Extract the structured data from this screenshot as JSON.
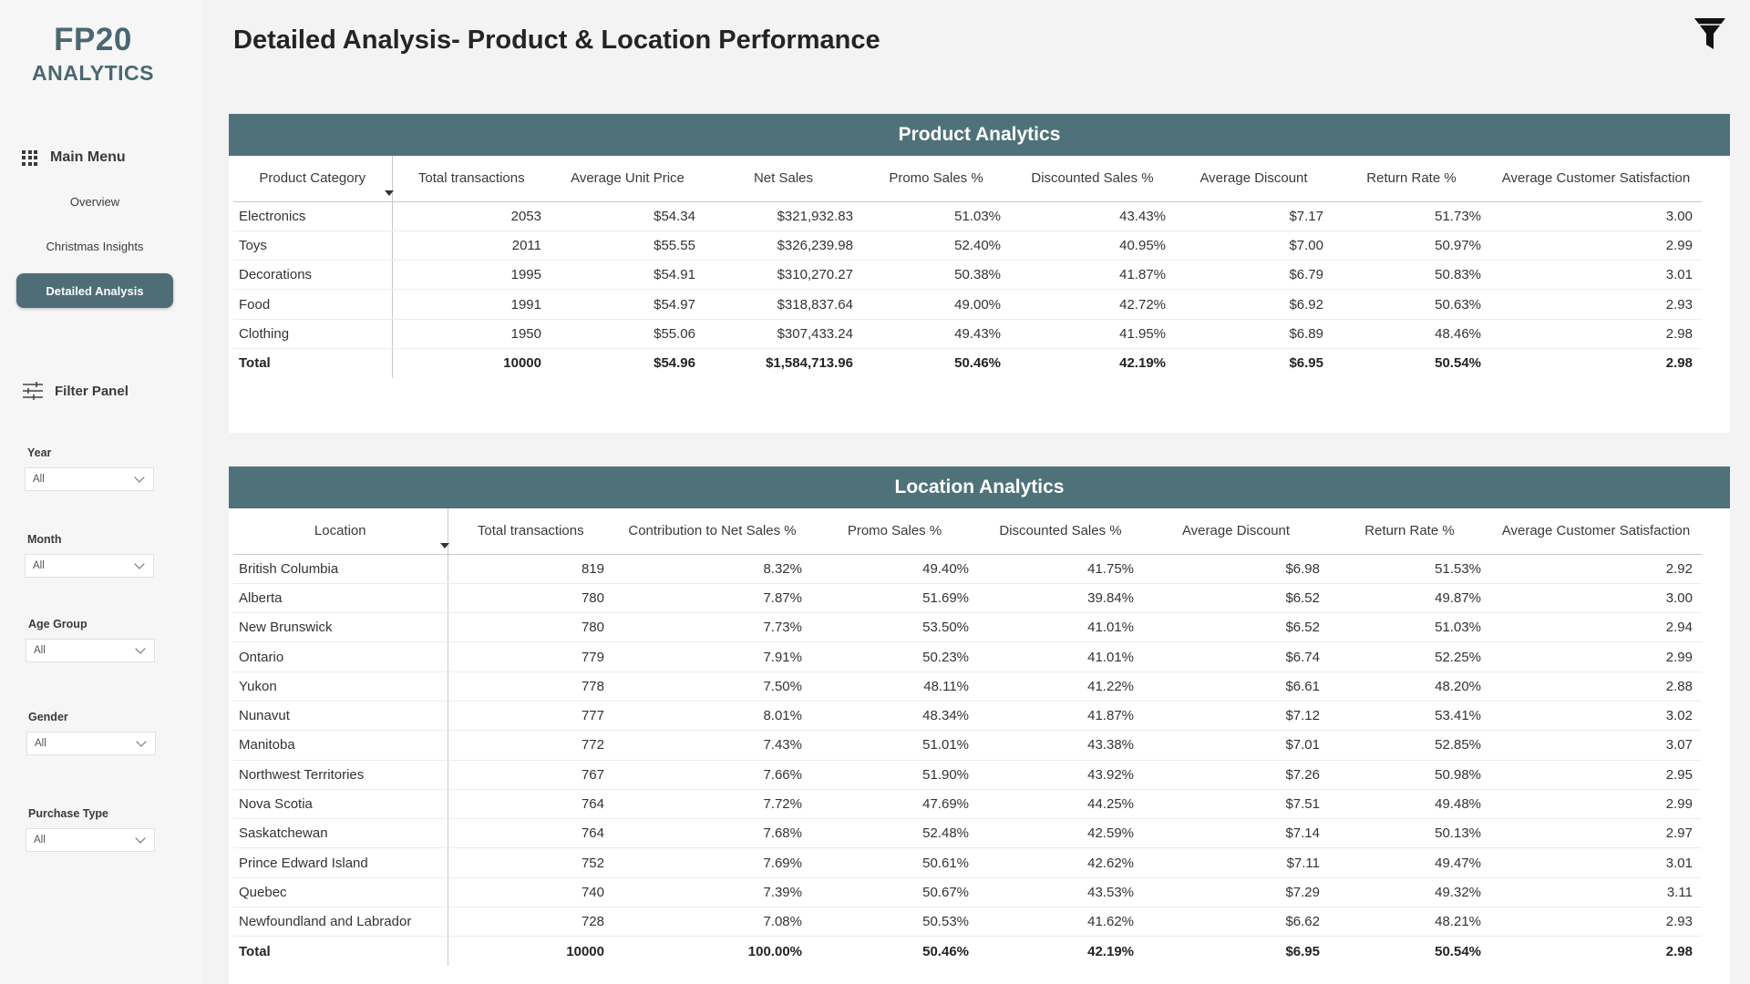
{
  "brand": {
    "line1": "FP20",
    "line2": "ANALYTICS"
  },
  "nav": {
    "header": "Main Menu",
    "items": [
      {
        "label": "Overview",
        "active": false
      },
      {
        "label": "Christmas Insights",
        "active": false
      },
      {
        "label": "Detailed Analysis",
        "active": true
      }
    ]
  },
  "filters": {
    "header": "Filter Panel",
    "slicers": [
      {
        "label": "Year",
        "value": "All"
      },
      {
        "label": "Month",
        "value": "All"
      },
      {
        "label": "Age Group",
        "value": "All"
      },
      {
        "label": "Gender",
        "value": "All"
      },
      {
        "label": "Purchase Type",
        "value": "All"
      }
    ]
  },
  "page": {
    "title": "Detailed Analysis- Product & Location Performance",
    "icon": "funnel-icon"
  },
  "colors": {
    "accent": "#4f727a",
    "nav_active": "#4e6d77",
    "brand": "#4a6870"
  },
  "product": {
    "title": "Product Analytics",
    "columns": [
      "Product Category",
      "Total transactions",
      "Average Unit Price",
      "Net Sales",
      "Promo Sales %",
      "Discounted Sales %",
      "Average Discount",
      "Return Rate %",
      "Average Customer Satisfaction"
    ],
    "rows": [
      [
        "Electronics",
        "2053",
        "$54.34",
        "$321,932.83",
        "51.03%",
        "43.43%",
        "$7.17",
        "51.73%",
        "3.00"
      ],
      [
        "Toys",
        "2011",
        "$55.55",
        "$326,239.98",
        "52.40%",
        "40.95%",
        "$7.00",
        "50.97%",
        "2.99"
      ],
      [
        "Decorations",
        "1995",
        "$54.91",
        "$310,270.27",
        "50.38%",
        "41.87%",
        "$6.79",
        "50.83%",
        "3.01"
      ],
      [
        "Food",
        "1991",
        "$54.97",
        "$318,837.64",
        "49.00%",
        "42.72%",
        "$6.92",
        "50.63%",
        "2.93"
      ],
      [
        "Clothing",
        "1950",
        "$55.06",
        "$307,433.24",
        "49.43%",
        "41.95%",
        "$6.89",
        "48.46%",
        "2.98"
      ]
    ],
    "total": [
      "Total",
      "10000",
      "$54.96",
      "$1,584,713.96",
      "50.46%",
      "42.19%",
      "$6.95",
      "50.54%",
      "2.98"
    ]
  },
  "location": {
    "title": "Location Analytics",
    "columns": [
      "Location",
      "Total transactions",
      "Contribution to Net Sales %",
      "Promo Sales %",
      "Discounted Sales %",
      "Average Discount",
      "Return Rate %",
      "Average Customer Satisfaction"
    ],
    "rows": [
      [
        "British Columbia",
        "819",
        "8.32%",
        "49.40%",
        "41.75%",
        "$6.98",
        "51.53%",
        "2.92"
      ],
      [
        "Alberta",
        "780",
        "7.87%",
        "51.69%",
        "39.84%",
        "$6.52",
        "49.87%",
        "3.00"
      ],
      [
        "New Brunswick",
        "780",
        "7.73%",
        "53.50%",
        "41.01%",
        "$6.52",
        "51.03%",
        "2.94"
      ],
      [
        "Ontario",
        "779",
        "7.91%",
        "50.23%",
        "41.01%",
        "$6.74",
        "52.25%",
        "2.99"
      ],
      [
        "Yukon",
        "778",
        "7.50%",
        "48.11%",
        "41.22%",
        "$6.61",
        "48.20%",
        "2.88"
      ],
      [
        "Nunavut",
        "777",
        "8.01%",
        "48.34%",
        "41.87%",
        "$7.12",
        "53.41%",
        "3.02"
      ],
      [
        "Manitoba",
        "772",
        "7.43%",
        "51.01%",
        "43.38%",
        "$7.01",
        "52.85%",
        "3.07"
      ],
      [
        "Northwest Territories",
        "767",
        "7.66%",
        "51.90%",
        "43.92%",
        "$7.26",
        "50.98%",
        "2.95"
      ],
      [
        "Nova Scotia",
        "764",
        "7.72%",
        "47.69%",
        "44.25%",
        "$7.51",
        "49.48%",
        "2.99"
      ],
      [
        "Saskatchewan",
        "764",
        "7.68%",
        "52.48%",
        "42.59%",
        "$7.14",
        "50.13%",
        "2.97"
      ],
      [
        "Prince Edward Island",
        "752",
        "7.69%",
        "50.61%",
        "42.62%",
        "$7.11",
        "49.47%",
        "3.01"
      ],
      [
        "Quebec",
        "740",
        "7.39%",
        "50.67%",
        "43.53%",
        "$7.29",
        "49.32%",
        "3.11"
      ],
      [
        "Newfoundland and Labrador",
        "728",
        "7.08%",
        "50.53%",
        "41.62%",
        "$6.62",
        "48.21%",
        "2.93"
      ]
    ],
    "total": [
      "Total",
      "10000",
      "100.00%",
      "50.46%",
      "42.19%",
      "$6.95",
      "50.54%",
      "2.98"
    ]
  }
}
